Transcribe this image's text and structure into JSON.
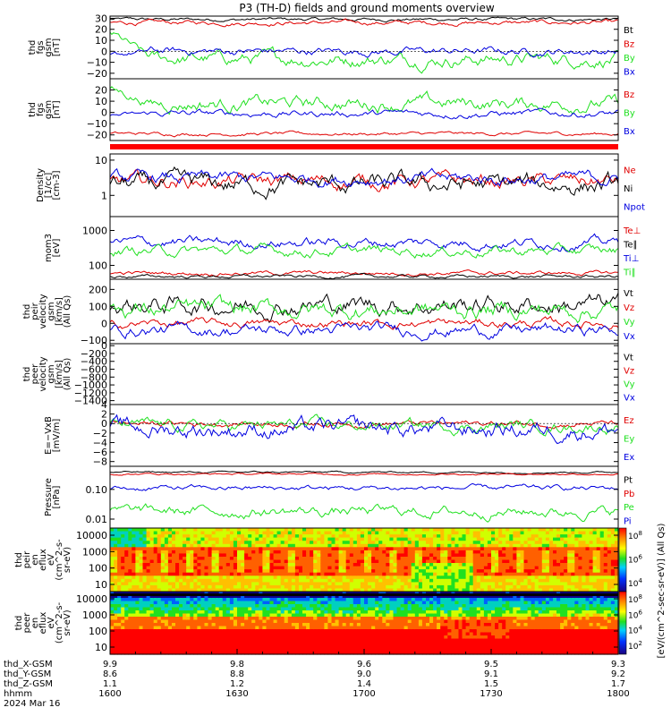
{
  "title": "P3 (TH-D) fields and ground moments overview",
  "colors": {
    "black": "#000000",
    "red": "#e00000",
    "green": "#20e020",
    "blue": "#0000e0",
    "bar": "#ff0000"
  },
  "x_axis": {
    "time_ticks": [
      "1600",
      "1630",
      "1700",
      "1730",
      "1800"
    ],
    "rows": [
      {
        "label": "thd_X-GSM",
        "values": [
          "9.9",
          "9.8",
          "9.6",
          "9.5",
          "9.3"
        ]
      },
      {
        "label": "thd_Y-GSM",
        "values": [
          "8.6",
          "8.8",
          "9.0",
          "9.1",
          "9.2"
        ]
      },
      {
        "label": "thd_Z-GSM",
        "values": [
          "1.1",
          "1.2",
          "1.4",
          "1.5",
          "1.7"
        ]
      },
      {
        "label": "hhmm",
        "values": [
          "1600",
          "1630",
          "1700",
          "1730",
          "1800"
        ]
      }
    ],
    "date": "2024 Mar 16"
  },
  "colorbar": {
    "label": "[eV/(cm^2-sec-sr-eV)] (All Qs)",
    "ticks_upper": [
      "10^8",
      "10^6",
      "10^4"
    ],
    "ticks_lower": [
      "10^8",
      "10^6",
      "10^4",
      "10^2"
    ]
  },
  "chart_data": [
    {
      "type": "line",
      "name": "fgs",
      "ylabel": [
        "thd",
        "fgs",
        "gsm",
        "[nT]"
      ],
      "ylim": [
        -25,
        32
      ],
      "yticks": [
        "30",
        "20",
        "10",
        "0",
        "−10",
        "−20"
      ],
      "series": [
        {
          "name": "Bt",
          "color": "black",
          "base": 29,
          "amp": 1.5
        },
        {
          "name": "Bz",
          "color": "red",
          "base": 26,
          "amp": 2
        },
        {
          "name": "By",
          "color": "green",
          "base": -7,
          "amp": 6,
          "start": 18
        },
        {
          "name": "Bx",
          "color": "blue",
          "base": 0,
          "amp": 3.5,
          "start": -4
        }
      ]
    },
    {
      "type": "line",
      "name": "fgs2",
      "ylabel": [
        "thd",
        "fgs",
        "gsm",
        "[nT]"
      ],
      "ylim": [
        -25,
        30
      ],
      "yticks": [
        "20",
        "10",
        "0",
        "−10",
        "−20"
      ],
      "series": [
        {
          "name": "Bz",
          "color": "red",
          "base": -19,
          "amp": 1.5
        },
        {
          "name": "By",
          "color": "green",
          "base": 8,
          "amp": 6,
          "start": 22
        },
        {
          "name": "Bx",
          "color": "blue",
          "base": -1,
          "amp": 3,
          "start": -3
        }
      ]
    },
    {
      "type": "line",
      "name": "density",
      "ylabel": [
        "Density",
        "[1/cc]",
        "[cm-3]"
      ],
      "ylim_log": [
        0.25,
        15
      ],
      "yticks": [
        "10",
        "1"
      ],
      "series": [
        {
          "name": "Ne",
          "color": "red",
          "base": 2.5,
          "amp": 0.35
        },
        {
          "name": "Ni",
          "color": "black",
          "base": 2.0,
          "amp": 0.45
        },
        {
          "name": "Npot",
          "color": "blue",
          "base": 3.0,
          "amp": 0.3
        }
      ]
    },
    {
      "type": "line",
      "name": "temperature",
      "ylabel": [
        "mom3",
        "[eV]"
      ],
      "ylim_log": [
        40,
        2500
      ],
      "yticks": [
        "1000",
        "100"
      ],
      "series": [
        {
          "name": "Te⊥",
          "color": "red",
          "base": 60,
          "amp": 0.1
        },
        {
          "name": "Te∥",
          "color": "black",
          "base": 48,
          "amp": 0.08
        },
        {
          "name": "Ti⊥",
          "color": "blue",
          "base": 450,
          "amp": 0.25
        },
        {
          "name": "Ti∥",
          "color": "green",
          "base": 260,
          "amp": 0.25
        }
      ]
    },
    {
      "type": "line",
      "name": "peir velocity",
      "ylabel": [
        "thd",
        "peir",
        "velocity",
        "gsm",
        "[km/s]",
        "(All Qs)"
      ],
      "ylim": [
        -120,
        260
      ],
      "yticks": [
        "200",
        "100",
        "0",
        "−100"
      ],
      "series": [
        {
          "name": "Vt",
          "color": "black",
          "base": 110,
          "amp": 55
        },
        {
          "name": "Vz",
          "color": "red",
          "base": 0,
          "amp": 25
        },
        {
          "name": "Vy",
          "color": "green",
          "base": 80,
          "amp": 50
        },
        {
          "name": "Vx",
          "color": "blue",
          "base": -40,
          "amp": 35
        }
      ]
    },
    {
      "type": "line",
      "name": "peer velocity",
      "ylabel": [
        "thd",
        "peer",
        "velocity",
        "gsm",
        "[km/s]",
        "(All Qs)"
      ],
      "ylim": [
        -1500,
        50
      ],
      "yticks": [
        "0",
        "−200",
        "−400",
        "−600",
        "−800",
        "−1000",
        "−1200",
        "−1400"
      ],
      "series": [
        {
          "name": "Vt",
          "color": "black"
        },
        {
          "name": "Vz",
          "color": "red"
        },
        {
          "name": "Vy",
          "color": "green"
        },
        {
          "name": "Vx",
          "color": "blue"
        }
      ]
    },
    {
      "type": "line",
      "name": "efield",
      "ylabel": [
        "E=−VxB",
        "[mV/m]"
      ],
      "ylim": [
        -9,
        4
      ],
      "yticks": [
        "4",
        "2",
        "0",
        "−2",
        "−4",
        "−6",
        "−8"
      ],
      "series": [
        {
          "name": "Ez",
          "color": "red",
          "base": 0,
          "amp": 0.6
        },
        {
          "name": "Ey",
          "color": "green",
          "base": -0.5,
          "amp": 1.2
        },
        {
          "name": "Ex",
          "color": "blue",
          "base": -1.2,
          "amp": 1.8
        }
      ]
    },
    {
      "type": "line",
      "name": "pressure",
      "ylabel": [
        "Pressure",
        "[nPa]"
      ],
      "ylim_log": [
        0.005,
        0.6
      ],
      "yticks": [
        "0.10",
        "0.01"
      ],
      "series": [
        {
          "name": "Pt",
          "color": "black",
          "base": 0.38,
          "amp": 0.05
        },
        {
          "name": "Pb",
          "color": "red",
          "base": 0.33,
          "amp": 0.05
        },
        {
          "name": "Pe",
          "color": "green",
          "base": 0.018,
          "amp": 0.3
        },
        {
          "name": "Pi",
          "color": "blue",
          "base": 0.11,
          "amp": 0.15
        }
      ]
    },
    {
      "type": "heatmap",
      "name": "peir",
      "ylabel": [
        "thd",
        "peir",
        "en",
        "eflux",
        "eV",
        "(cm^2-s-",
        "sr-eV)"
      ],
      "yticks": [
        "10000",
        "1000",
        "100",
        "10"
      ]
    },
    {
      "type": "heatmap",
      "name": "peer",
      "ylabel": [
        "thd",
        "peer",
        "en",
        "eflux",
        "eV",
        "(cm^2-s-",
        "sr-eV)"
      ],
      "yticks": [
        "10000",
        "1000",
        "100",
        "10"
      ]
    }
  ]
}
